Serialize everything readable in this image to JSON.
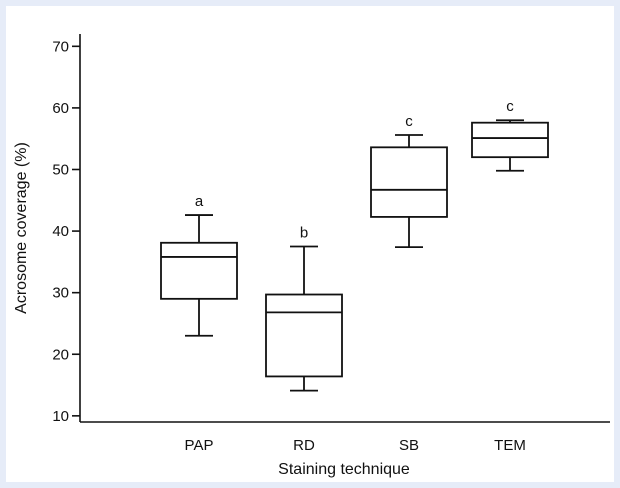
{
  "chart_data": {
    "type": "box",
    "xlabel": "Staining technique",
    "ylabel": "Acrosome coverage (%)",
    "ylim": [
      9,
      72
    ],
    "yticks": [
      10,
      20,
      30,
      40,
      50,
      60,
      70
    ],
    "grid": false,
    "categories": [
      "PAP",
      "RD",
      "SB",
      "TEM"
    ],
    "boxes": [
      {
        "category": "PAP",
        "min": 23,
        "q1": 29,
        "median": 35.8,
        "q3": 38.1,
        "max": 42.6,
        "label": "a"
      },
      {
        "category": "RD",
        "min": 14.1,
        "q1": 16.4,
        "median": 26.8,
        "q3": 29.7,
        "max": 37.5,
        "label": "b"
      },
      {
        "category": "SB",
        "min": 37.4,
        "q1": 42.3,
        "median": 46.7,
        "q3": 53.6,
        "max": 55.6,
        "label": "c"
      },
      {
        "category": "TEM",
        "min": 49.8,
        "q1": 52,
        "median": 55.1,
        "q3": 57.6,
        "max": 58,
        "label": "c"
      }
    ]
  }
}
